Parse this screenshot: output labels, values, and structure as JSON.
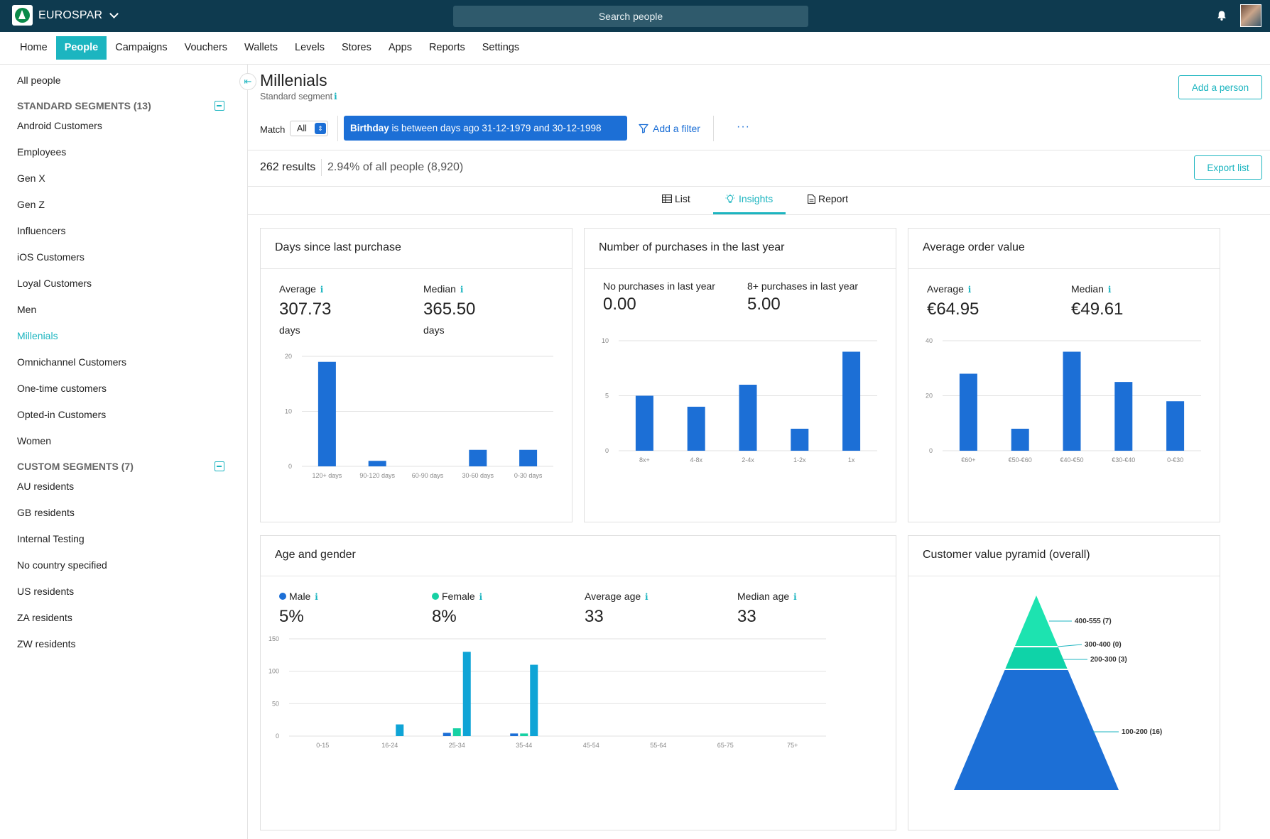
{
  "app": {
    "brand": "EUROSPAR",
    "search_placeholder": "Search people"
  },
  "nav": [
    "Home",
    "People",
    "Campaigns",
    "Vouchers",
    "Wallets",
    "Levels",
    "Stores",
    "Apps",
    "Reports",
    "Settings"
  ],
  "sidebar": {
    "all_people": "All people",
    "standard_heading": "STANDARD SEGMENTS (13)",
    "standard": [
      "Android Customers",
      "Employees",
      "Gen X",
      "Gen Z",
      "Influencers",
      "iOS Customers",
      "Loyal Customers",
      "Men",
      "Millenials",
      "Omnichannel Customers",
      "One-time customers",
      "Opted-in Customers",
      "Women"
    ],
    "custom_heading": "CUSTOM SEGMENTS (7)",
    "custom": [
      "AU residents",
      "GB residents",
      "Internal Testing",
      "No country specified",
      "US residents",
      "ZA residents",
      "ZW residents"
    ],
    "active": "Millenials"
  },
  "header": {
    "title": "Millenials",
    "subtitle": "Standard segment",
    "add_person": "Add a person",
    "match_label": "Match",
    "match_value": "All",
    "filter_field": "Birthday",
    "filter_text": "is between days ago 31-12-1979 and 30-12-1998",
    "add_filter": "Add a filter",
    "more": "···",
    "results": "262 results",
    "results_pct": "2.94% of all people (8,920)",
    "export": "Export list"
  },
  "tabs": [
    "List",
    "Insights",
    "Report"
  ],
  "active_tab": "Insights",
  "colors": {
    "accent": "#1cb5c0",
    "bar_blue": "#1c6fd6",
    "male": "#1c6fd6",
    "female": "#17d1a4",
    "age_bar": "#0fa4d6",
    "pyramid_top": "#1de3b0",
    "pyramid_mid": "#0fd3a8",
    "pyramid_base": "#1c6fd6"
  },
  "cards": {
    "days": {
      "title": "Days since last purchase",
      "stats": [
        {
          "label": "Average",
          "value": "307.73",
          "unit": "days"
        },
        {
          "label": "Median",
          "value": "365.50",
          "unit": "days"
        }
      ]
    },
    "purchases": {
      "title": "Number of purchases in the last year",
      "stats": [
        {
          "label": "No purchases in last year",
          "value": "0.00"
        },
        {
          "label": "8+ purchases in last year",
          "value": "5.00"
        }
      ]
    },
    "aov": {
      "title": "Average order value",
      "stats": [
        {
          "label": "Average",
          "value": "€64.95"
        },
        {
          "label": "Median",
          "value": "€49.61"
        }
      ]
    },
    "age": {
      "title": "Age and gender",
      "stats": [
        {
          "label": "Male",
          "value": "5%"
        },
        {
          "label": "Female",
          "value": "8%"
        },
        {
          "label": "Average age",
          "value": "33"
        },
        {
          "label": "Median age",
          "value": "33"
        }
      ]
    },
    "pyramid": {
      "title": "Customer value pyramid (overall)"
    }
  },
  "chart_data": [
    {
      "type": "bar",
      "categories": [
        "120+ days",
        "90-120 days",
        "60-90 days",
        "30-60 days",
        "0-30 days"
      ],
      "values": [
        19,
        1,
        0,
        3,
        3
      ],
      "ylim": [
        0,
        20
      ],
      "yticks": [
        "0",
        "10",
        "20"
      ],
      "grid": true
    },
    {
      "type": "bar",
      "categories": [
        "8x+",
        "4-8x",
        "2-4x",
        "1-2x",
        "1x"
      ],
      "values": [
        5,
        4,
        6,
        2,
        9
      ],
      "ylim": [
        0,
        10
      ],
      "yticks": [
        "0",
        "5",
        "10"
      ],
      "grid": true
    },
    {
      "type": "bar",
      "categories": [
        "€60+",
        "€50-€60",
        "€40-€50",
        "€30-€40",
        "0-€30"
      ],
      "values": [
        28,
        8,
        36,
        25,
        18
      ],
      "ylim": [
        0,
        40
      ],
      "yticks": [
        "0",
        "20",
        "40"
      ],
      "grid": true
    },
    {
      "type": "bar",
      "categories": [
        "0-15",
        "16-24",
        "25-34",
        "35-44",
        "45-54",
        "55-64",
        "65-75",
        "75+"
      ],
      "series": [
        {
          "name": "Male",
          "values": [
            0,
            0,
            5,
            4,
            0,
            0,
            0,
            0
          ]
        },
        {
          "name": "Female",
          "values": [
            0,
            0,
            12,
            4,
            0,
            0,
            0,
            0
          ]
        },
        {
          "values": [
            0,
            18,
            130,
            110,
            0,
            0,
            0,
            0
          ]
        }
      ],
      "ylim": [
        0,
        150
      ],
      "yticks": [
        "0",
        "50",
        "100",
        "150"
      ],
      "grid": true
    },
    {
      "type": "pyramid",
      "levels": [
        {
          "label": "400-555 (7)",
          "value": 7
        },
        {
          "label": "300-400 (0)",
          "value": 0
        },
        {
          "label": "200-300 (3)",
          "value": 3
        },
        {
          "label": "100-200 (16)",
          "value": 16
        }
      ]
    }
  ]
}
